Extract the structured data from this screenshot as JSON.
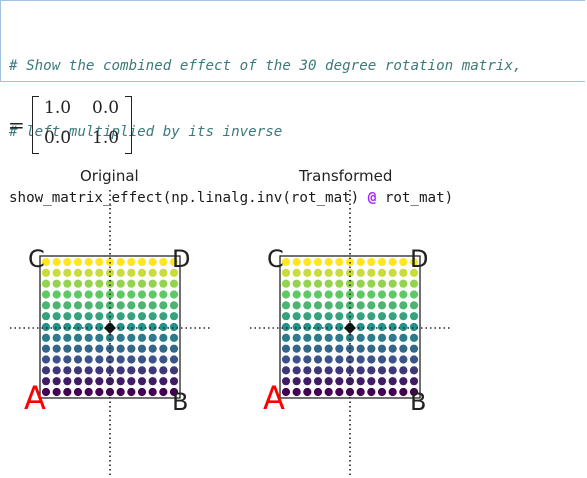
{
  "code_cell": {
    "line1": "# Show the combined effect of the 30 degree rotation matrix,",
    "line2": "# left-multiplied by its inverse",
    "line3_pre": "show_matrix_effect(np.linalg.inv(rot_mat) ",
    "line3_op": "@",
    "line3_post": " rot_mat)"
  },
  "output": {
    "equals": "=",
    "matrix": [
      "1.0",
      "0.0",
      "0.0",
      "1.0"
    ]
  },
  "plots": [
    {
      "title": "Original",
      "labels": {
        "A": "A",
        "B": "B",
        "C": "C",
        "D": "D"
      }
    },
    {
      "title": "Transformed",
      "labels": {
        "A": "A",
        "B": "B",
        "C": "C",
        "D": "D"
      }
    }
  ],
  "colors": {
    "label_A": "#ff0000",
    "cell_border": "#9fc3e7",
    "comment": "#3d7a7a"
  }
}
